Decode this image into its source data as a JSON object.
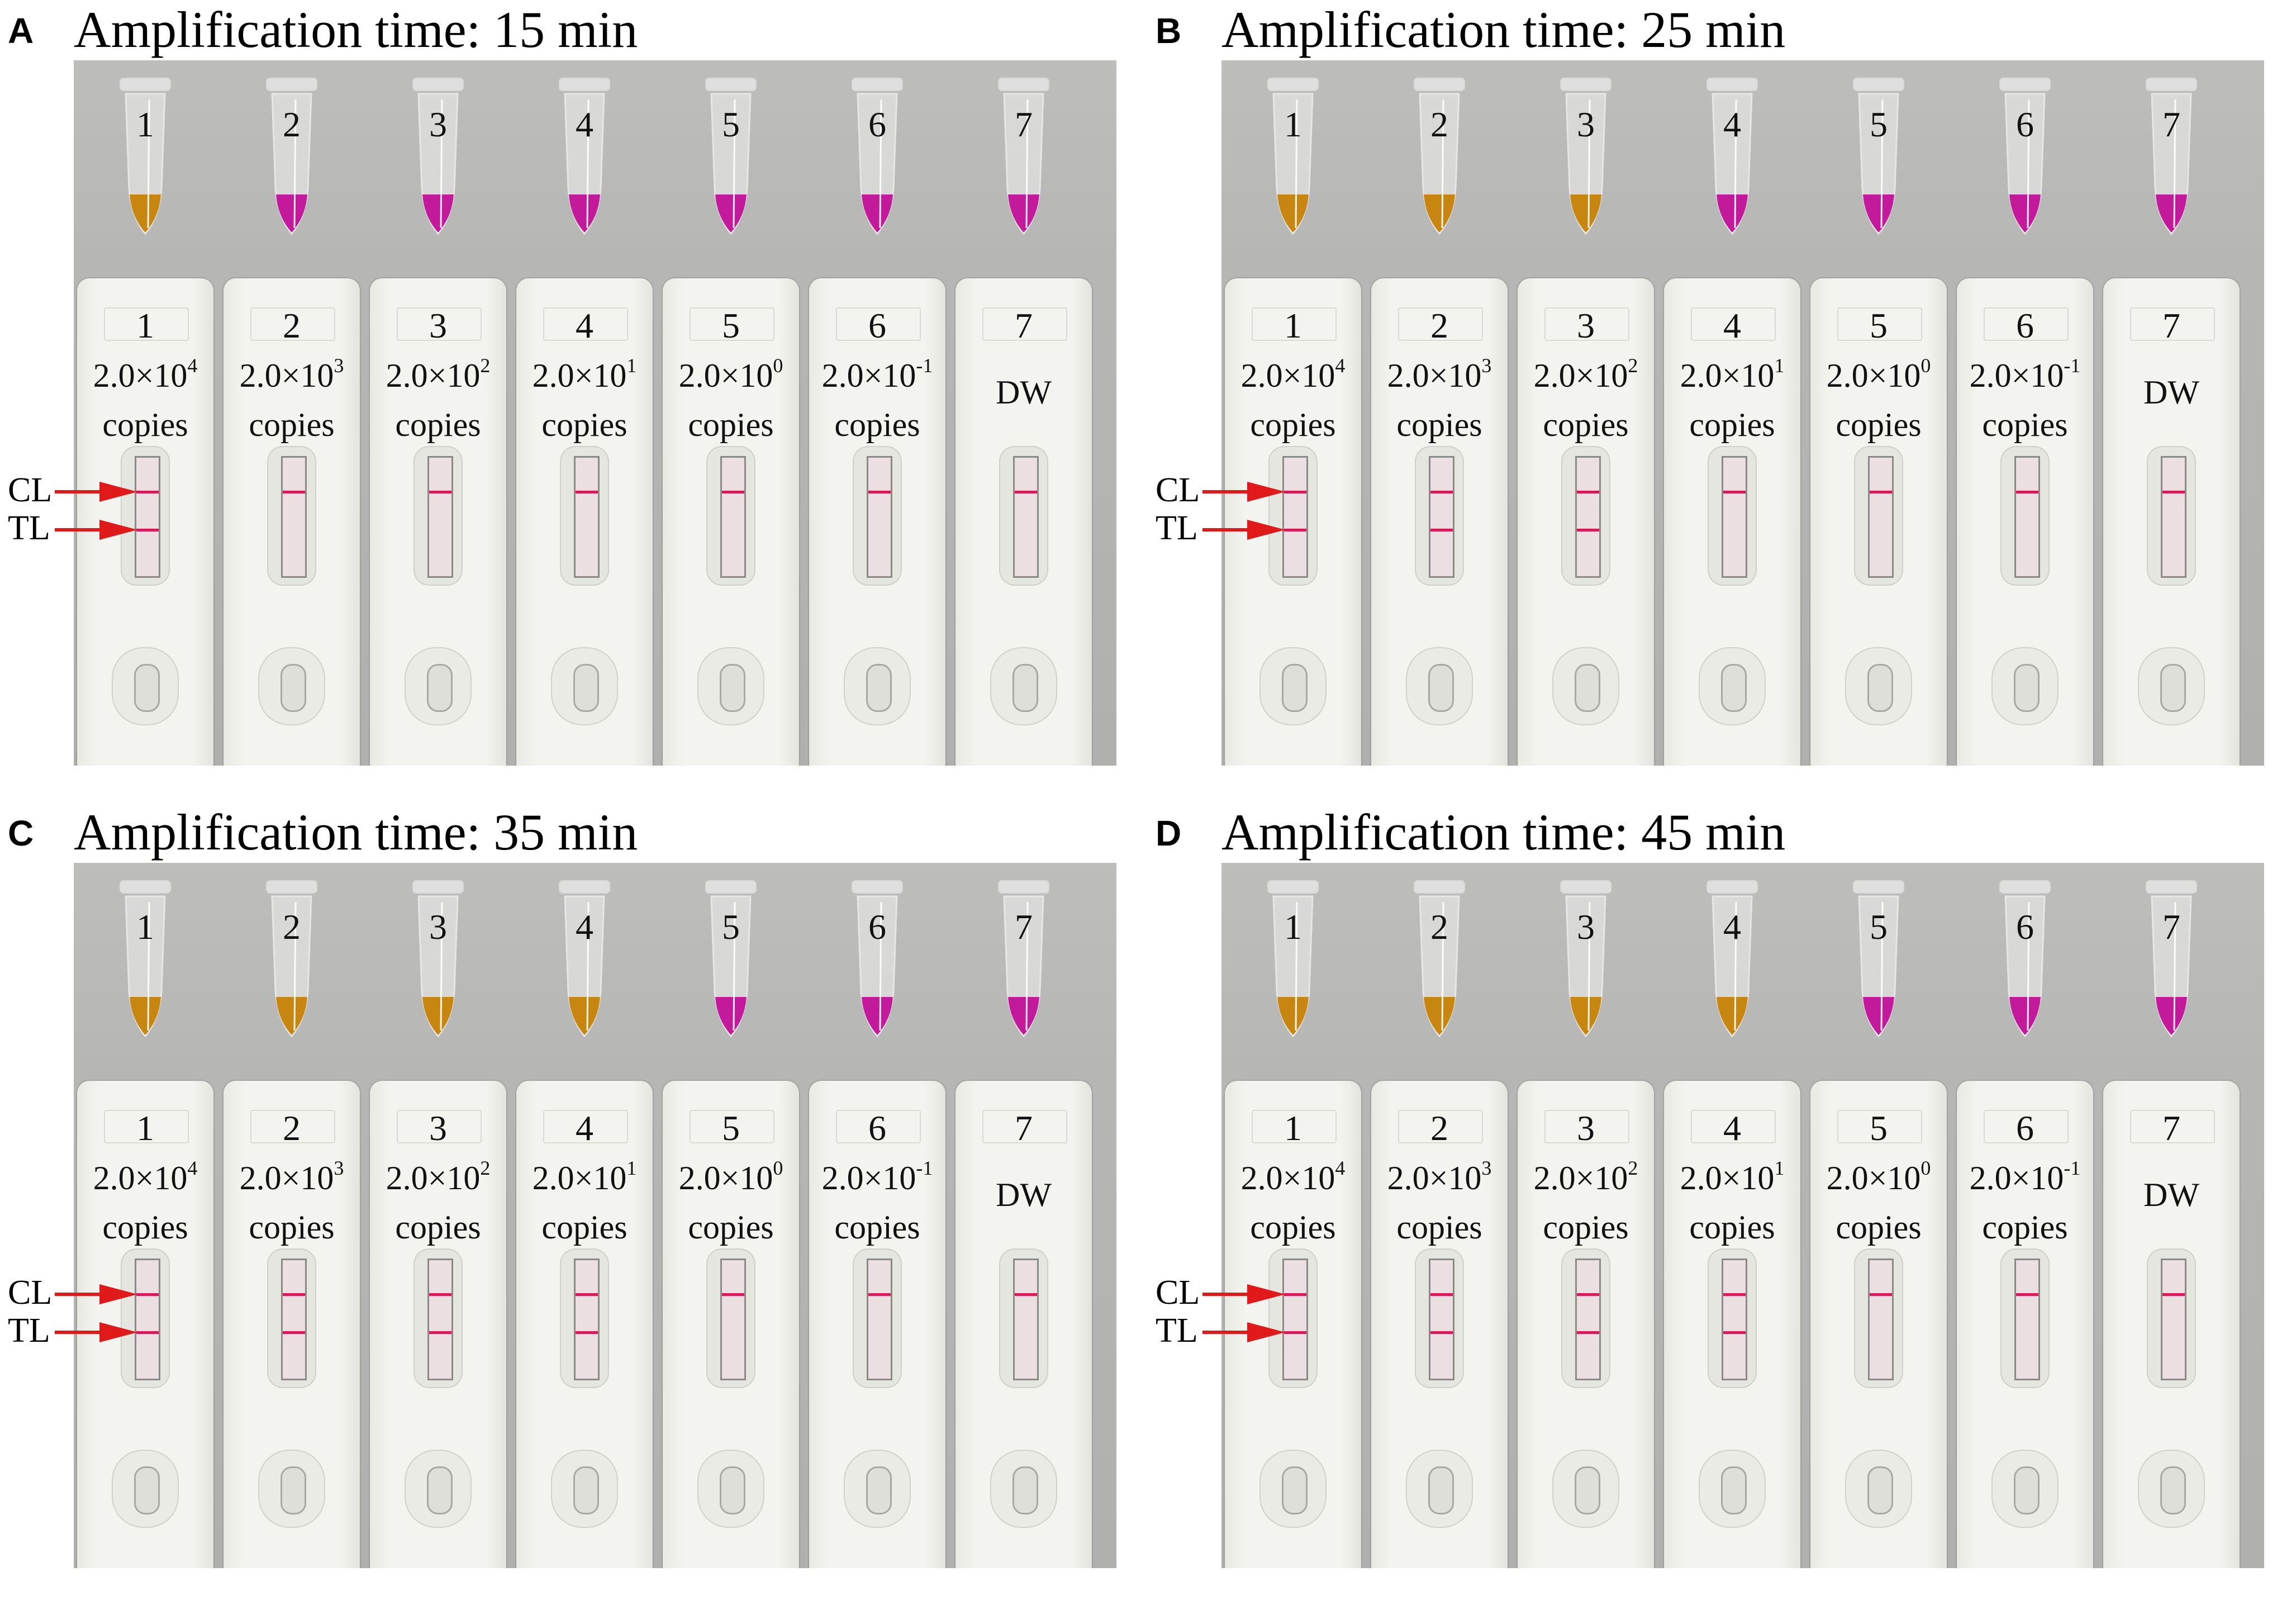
{
  "colors": {
    "orange_liquid": "#c7860f",
    "magenta_liquid": "#c21a9a",
    "control_line": "#d8195a",
    "arrow": "#e0191b"
  },
  "strip_labels": {
    "cl": "CL",
    "tl": "TL",
    "copies": "copies",
    "dw": "DW"
  },
  "panels": [
    {
      "letter": "A",
      "title": "Amplification time: 15 min",
      "tubes": [
        {
          "num": "1",
          "color": "orange"
        },
        {
          "num": "2",
          "color": "magenta"
        },
        {
          "num": "3",
          "color": "magenta"
        },
        {
          "num": "4",
          "color": "magenta"
        },
        {
          "num": "5",
          "color": "magenta"
        },
        {
          "num": "6",
          "color": "magenta"
        },
        {
          "num": "7",
          "color": "magenta"
        }
      ],
      "strips": [
        {
          "num": "1",
          "base": "2.0×10",
          "exp": "4",
          "control_line": true,
          "test_line": true
        },
        {
          "num": "2",
          "base": "2.0×10",
          "exp": "3",
          "control_line": true,
          "test_line": false
        },
        {
          "num": "3",
          "base": "2.0×10",
          "exp": "2",
          "control_line": true,
          "test_line": false
        },
        {
          "num": "4",
          "base": "2.0×10",
          "exp": "1",
          "control_line": true,
          "test_line": false
        },
        {
          "num": "5",
          "base": "2.0×10",
          "exp": "0",
          "control_line": true,
          "test_line": false
        },
        {
          "num": "6",
          "base": "2.0×10",
          "exp": "-1",
          "control_line": true,
          "test_line": false
        },
        {
          "num": "7",
          "dw": true,
          "control_line": true,
          "test_line": false
        }
      ]
    },
    {
      "letter": "B",
      "title": "Amplification time: 25 min",
      "tubes": [
        {
          "num": "1",
          "color": "orange"
        },
        {
          "num": "2",
          "color": "orange"
        },
        {
          "num": "3",
          "color": "orange"
        },
        {
          "num": "4",
          "color": "magenta"
        },
        {
          "num": "5",
          "color": "magenta"
        },
        {
          "num": "6",
          "color": "magenta"
        },
        {
          "num": "7",
          "color": "magenta"
        }
      ],
      "strips": [
        {
          "num": "1",
          "base": "2.0×10",
          "exp": "4",
          "control_line": true,
          "test_line": true
        },
        {
          "num": "2",
          "base": "2.0×10",
          "exp": "3",
          "control_line": true,
          "test_line": true
        },
        {
          "num": "3",
          "base": "2.0×10",
          "exp": "2",
          "control_line": true,
          "test_line": true
        },
        {
          "num": "4",
          "base": "2.0×10",
          "exp": "1",
          "control_line": true,
          "test_line": false
        },
        {
          "num": "5",
          "base": "2.0×10",
          "exp": "0",
          "control_line": true,
          "test_line": false
        },
        {
          "num": "6",
          "base": "2.0×10",
          "exp": "-1",
          "control_line": true,
          "test_line": false
        },
        {
          "num": "7",
          "dw": true,
          "control_line": true,
          "test_line": false
        }
      ]
    },
    {
      "letter": "C",
      "title": "Amplification time: 35 min",
      "tubes": [
        {
          "num": "1",
          "color": "orange"
        },
        {
          "num": "2",
          "color": "orange"
        },
        {
          "num": "3",
          "color": "orange"
        },
        {
          "num": "4",
          "color": "orange"
        },
        {
          "num": "5",
          "color": "magenta"
        },
        {
          "num": "6",
          "color": "magenta"
        },
        {
          "num": "7",
          "color": "magenta"
        }
      ],
      "strips": [
        {
          "num": "1",
          "base": "2.0×10",
          "exp": "4",
          "control_line": true,
          "test_line": true
        },
        {
          "num": "2",
          "base": "2.0×10",
          "exp": "3",
          "control_line": true,
          "test_line": true
        },
        {
          "num": "3",
          "base": "2.0×10",
          "exp": "2",
          "control_line": true,
          "test_line": true
        },
        {
          "num": "4",
          "base": "2.0×10",
          "exp": "1",
          "control_line": true,
          "test_line": true
        },
        {
          "num": "5",
          "base": "2.0×10",
          "exp": "0",
          "control_line": true,
          "test_line": false
        },
        {
          "num": "6",
          "base": "2.0×10",
          "exp": "-1",
          "control_line": true,
          "test_line": false
        },
        {
          "num": "7",
          "dw": true,
          "control_line": true,
          "test_line": false
        }
      ]
    },
    {
      "letter": "D",
      "title": "Amplification time: 45 min",
      "tubes": [
        {
          "num": "1",
          "color": "orange"
        },
        {
          "num": "2",
          "color": "orange"
        },
        {
          "num": "3",
          "color": "orange"
        },
        {
          "num": "4",
          "color": "orange"
        },
        {
          "num": "5",
          "color": "magenta"
        },
        {
          "num": "6",
          "color": "magenta"
        },
        {
          "num": "7",
          "color": "magenta"
        }
      ],
      "strips": [
        {
          "num": "1",
          "base": "2.0×10",
          "exp": "4",
          "control_line": true,
          "test_line": true
        },
        {
          "num": "2",
          "base": "2.0×10",
          "exp": "3",
          "control_line": true,
          "test_line": true
        },
        {
          "num": "3",
          "base": "2.0×10",
          "exp": "2",
          "control_line": true,
          "test_line": true
        },
        {
          "num": "4",
          "base": "2.0×10",
          "exp": "1",
          "control_line": true,
          "test_line": true
        },
        {
          "num": "5",
          "base": "2.0×10",
          "exp": "0",
          "control_line": true,
          "test_line": false
        },
        {
          "num": "6",
          "base": "2.0×10",
          "exp": "-1",
          "control_line": true,
          "test_line": false
        },
        {
          "num": "7",
          "dw": true,
          "control_line": true,
          "test_line": false
        }
      ]
    }
  ]
}
